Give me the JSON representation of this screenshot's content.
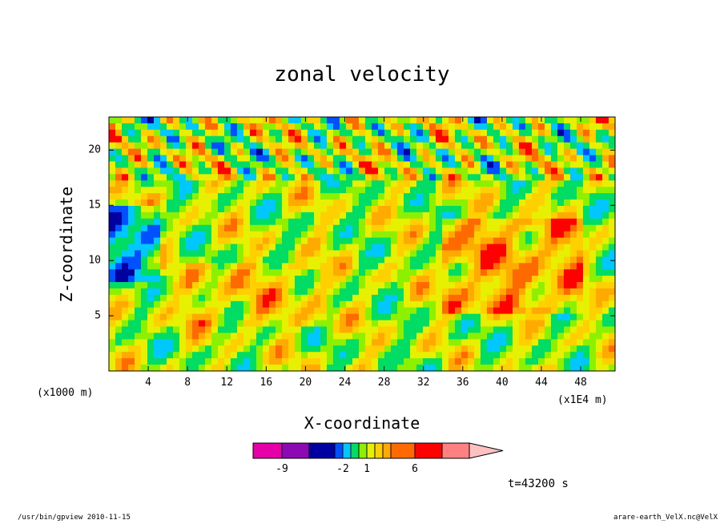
{
  "chart_data": {
    "type": "heatmap",
    "title": "zonal velocity",
    "xlabel": "X-coordinate",
    "ylabel": "Z-coordinate",
    "x_unit": "(x1E4 m)",
    "y_unit": "(x1000 m)",
    "xlim": [
      0,
      51.5
    ],
    "ylim": [
      0,
      23
    ],
    "x_ticks": [
      4,
      8,
      12,
      16,
      20,
      24,
      28,
      32,
      36,
      40,
      44,
      48
    ],
    "y_ticks": [
      5,
      10,
      15,
      20
    ],
    "colorbar": {
      "labels": [
        -9,
        -2,
        1,
        6
      ],
      "colors": [
        "#e600a8",
        "#8c0ab4",
        "#0000a0",
        "#0050ff",
        "#00c8ff",
        "#00dc64",
        "#8cf000",
        "#e6f000",
        "#ffd000",
        "#ffaa00",
        "#ff6a00",
        "#ff0000",
        "#ff8080",
        "#ffc0c0"
      ]
    },
    "annotation": "t=43200 s"
  },
  "footer": {
    "left": "/usr/bin/gpview   2010-11-15",
    "right": "arare-earth_VelX.nc@VelX"
  }
}
